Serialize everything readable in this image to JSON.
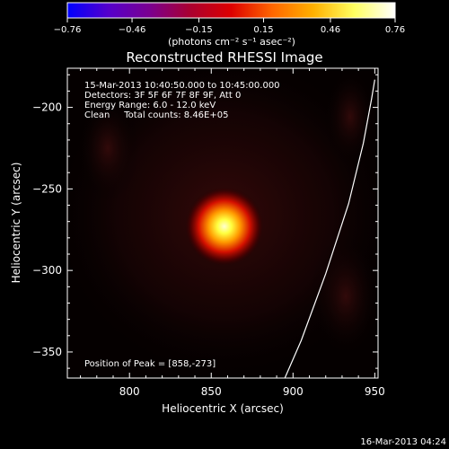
{
  "chart_data": {
    "type": "heatmap",
    "title": "Reconstructed RHESSI Image",
    "xlabel": "Heliocentric X (arcsec)",
    "ylabel": "Heliocentric Y (arcsec)",
    "xlim": [
      762,
      952
    ],
    "ylim": [
      -366,
      -176
    ],
    "x_ticks": [
      800,
      850,
      900,
      950
    ],
    "x_tick_labels": [
      "800",
      "850",
      "900",
      "950"
    ],
    "y_ticks": [
      -200,
      -250,
      -300,
      -350
    ],
    "y_tick_labels": [
      "−200",
      "−250",
      "−300",
      "−350"
    ],
    "colorbar": {
      "range": [
        -0.76,
        0.76
      ],
      "ticks": [
        -0.76,
        -0.46,
        -0.15,
        0.15,
        0.46,
        0.76
      ],
      "tick_labels": [
        "−0.76",
        "−0.46",
        "−0.15",
        "0.15",
        "0.46",
        "0.76"
      ],
      "unit_label": "(photons cm⁻² s⁻¹ asec⁻²)",
      "colormap": [
        "#0000ff",
        "#5500cc",
        "#7a0090",
        "#aa0030",
        "#dd0000",
        "#ff6600",
        "#ffb000",
        "#ffff60",
        "#ffffff"
      ]
    },
    "peak": {
      "x": 858,
      "y": -273,
      "value": 0.76
    },
    "limb_arc": [
      [
        895,
        -366
      ],
      [
        905,
        -343
      ],
      [
        920,
        -302
      ],
      [
        934,
        -259
      ],
      [
        943,
        -222
      ],
      [
        948,
        -195
      ],
      [
        950,
        -183
      ]
    ],
    "annotations": [
      "15-Mar-2013 10:40:50.000 to 10:45:00.000",
      "Detectors: 3F 5F 6F 7F 8F 9F, Att 0",
      "Energy Range: 6.0 - 12.0 keV",
      "Clean     Total counts: 8.46E+05"
    ],
    "peak_label": "Position of Peak = [858,-273]",
    "footer": "16-Mar-2013 04:24"
  }
}
